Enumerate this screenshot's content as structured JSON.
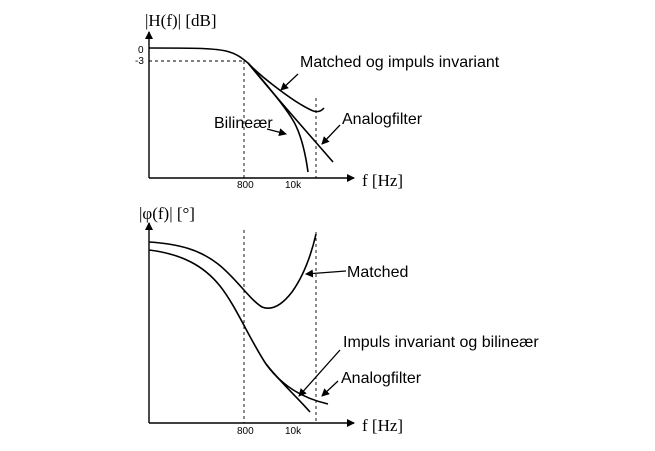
{
  "top_plot": {
    "y_label": "|H(f)| [dB]",
    "y_tick_0": "0",
    "y_tick_minus3": "-3",
    "x_tick_800": "800",
    "x_tick_10k": "10k",
    "x_label": "f [Hz]",
    "annotation_matched_impuls": "Matched og impuls invariant",
    "annotation_bilinear": "Bilineær",
    "annotation_analog": "Analogfilter"
  },
  "bottom_plot": {
    "y_label": "|φ(f)| [°]",
    "x_tick_800": "800",
    "x_tick_10k": "10k",
    "x_label": "f [Hz]",
    "annotation_matched": "Matched",
    "annotation_impuls_bilinear": "Impuls invariant og bilineær",
    "annotation_analog": "Analogfilter"
  }
}
